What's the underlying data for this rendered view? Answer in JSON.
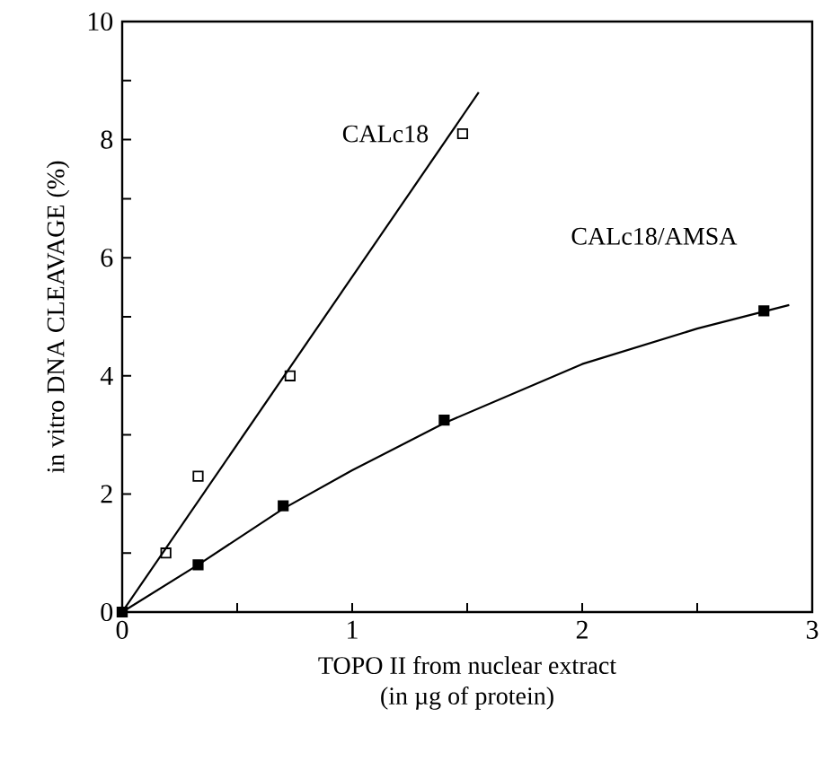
{
  "chart_data": {
    "type": "scatter",
    "xlabel": "TOPO II from nuclear extract\n(in µg of protein)",
    "ylabel": "in vitro DNA CLEAVAGE (%)",
    "xlim": [
      0,
      3
    ],
    "ylim": [
      0,
      10
    ],
    "xticks": [
      0,
      {
        "value": 0.5,
        "label": null
      },
      1,
      {
        "value": 1.5,
        "label": null
      },
      2,
      {
        "value": 2.5,
        "label": null
      },
      3
    ],
    "yticks": [
      0,
      {
        "value": 1,
        "label": null
      },
      2,
      {
        "value": 3,
        "label": null
      },
      4,
      {
        "value": 5,
        "label": null
      },
      6,
      {
        "value": 7,
        "label": null
      },
      8,
      {
        "value": 9,
        "label": null
      },
      10
    ],
    "grid": false,
    "series": [
      {
        "name": "CALc18",
        "marker": "square-open",
        "color": "#000000",
        "x": [
          0,
          0.19,
          0.33,
          0.73,
          1.48
        ],
        "values": [
          0,
          1.0,
          2.3,
          4.0,
          8.1
        ]
      },
      {
        "name": "CALc18/AMSA",
        "marker": "square",
        "color": "#000000",
        "x": [
          0,
          0.33,
          0.7,
          1.4,
          2.79
        ],
        "values": [
          0,
          0.8,
          1.8,
          3.25,
          5.1
        ]
      },
      {
        "type": "line",
        "marker": "none",
        "line_style": "solid",
        "color": "#000000",
        "x": [
          0,
          1.55
        ],
        "values": [
          0,
          8.8
        ]
      },
      {
        "type": "line",
        "marker": "none",
        "line_style": "solid",
        "color": "#000000",
        "x": [
          0,
          0.33,
          0.7,
          1.0,
          1.4,
          2.0,
          2.5,
          2.9
        ],
        "values": [
          0,
          0.8,
          1.75,
          2.4,
          3.2,
          4.2,
          4.8,
          5.2
        ]
      }
    ]
  }
}
